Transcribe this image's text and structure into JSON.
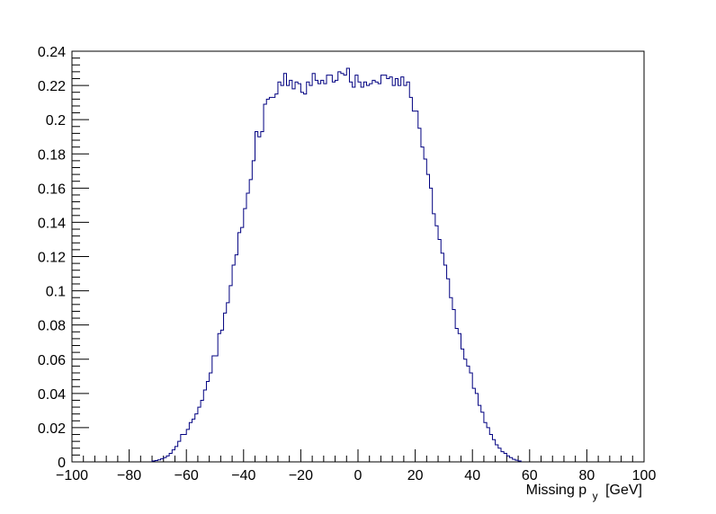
{
  "chart_data": {
    "type": "histogram",
    "xlabel": "Missing p",
    "xlabel_subscript": "y",
    "xlabel_unit": "[GeV]",
    "xlim": [
      -100,
      100
    ],
    "ylim": [
      0,
      0.24
    ],
    "grid": false,
    "legend": "none",
    "line_color": "#000080",
    "x_ticks": [
      -100,
      -80,
      -60,
      -40,
      -20,
      0,
      20,
      40,
      60,
      80,
      100
    ],
    "x_tick_labels": [
      "−100",
      "−80",
      "−60",
      "−40",
      "−20",
      "0",
      "20",
      "40",
      "60",
      "80",
      "100"
    ],
    "y_ticks": [
      0,
      0.02,
      0.04,
      0.06,
      0.08,
      0.1,
      0.12,
      0.14,
      0.16,
      0.18,
      0.2,
      0.22,
      0.24
    ],
    "y_tick_labels": [
      "0",
      "0.02",
      "0.04",
      "0.06",
      "0.08",
      "0.1",
      "0.12",
      "0.14",
      "0.16",
      "0.18",
      "0.2",
      "0.22",
      "0.24"
    ],
    "bin_width": 1,
    "bins_start": -72,
    "values": [
      0.0005,
      0.0008,
      0.0012,
      0.0018,
      0.0025,
      0.0035,
      0.005,
      0.007,
      0.009,
      0.012,
      0.016,
      0.016,
      0.019,
      0.023,
      0.025,
      0.028,
      0.032,
      0.036,
      0.042,
      0.047,
      0.052,
      0.062,
      0.062,
      0.075,
      0.077,
      0.087,
      0.093,
      0.103,
      0.115,
      0.121,
      0.134,
      0.137,
      0.148,
      0.157,
      0.165,
      0.176,
      0.193,
      0.19,
      0.193,
      0.209,
      0.212,
      0.213,
      0.213,
      0.215,
      0.222,
      0.22,
      0.227,
      0.22,
      0.223,
      0.218,
      0.222,
      0.221,
      0.216,
      0.215,
      0.222,
      0.22,
      0.227,
      0.223,
      0.221,
      0.223,
      0.221,
      0.226,
      0.226,
      0.222,
      0.223,
      0.228,
      0.227,
      0.226,
      0.23,
      0.222,
      0.219,
      0.226,
      0.222,
      0.219,
      0.222,
      0.22,
      0.221,
      0.223,
      0.222,
      0.221,
      0.226,
      0.226,
      0.224,
      0.225,
      0.22,
      0.224,
      0.22,
      0.225,
      0.22,
      0.222,
      0.213,
      0.205,
      0.205,
      0.195,
      0.184,
      0.177,
      0.168,
      0.16,
      0.145,
      0.138,
      0.13,
      0.122,
      0.115,
      0.107,
      0.096,
      0.089,
      0.078,
      0.075,
      0.066,
      0.06,
      0.056,
      0.052,
      0.043,
      0.04,
      0.033,
      0.029,
      0.023,
      0.02,
      0.016,
      0.013,
      0.01,
      0.008,
      0.006,
      0.005,
      0.0035,
      0.0025,
      0.0015,
      0.001,
      0.0005
    ]
  }
}
